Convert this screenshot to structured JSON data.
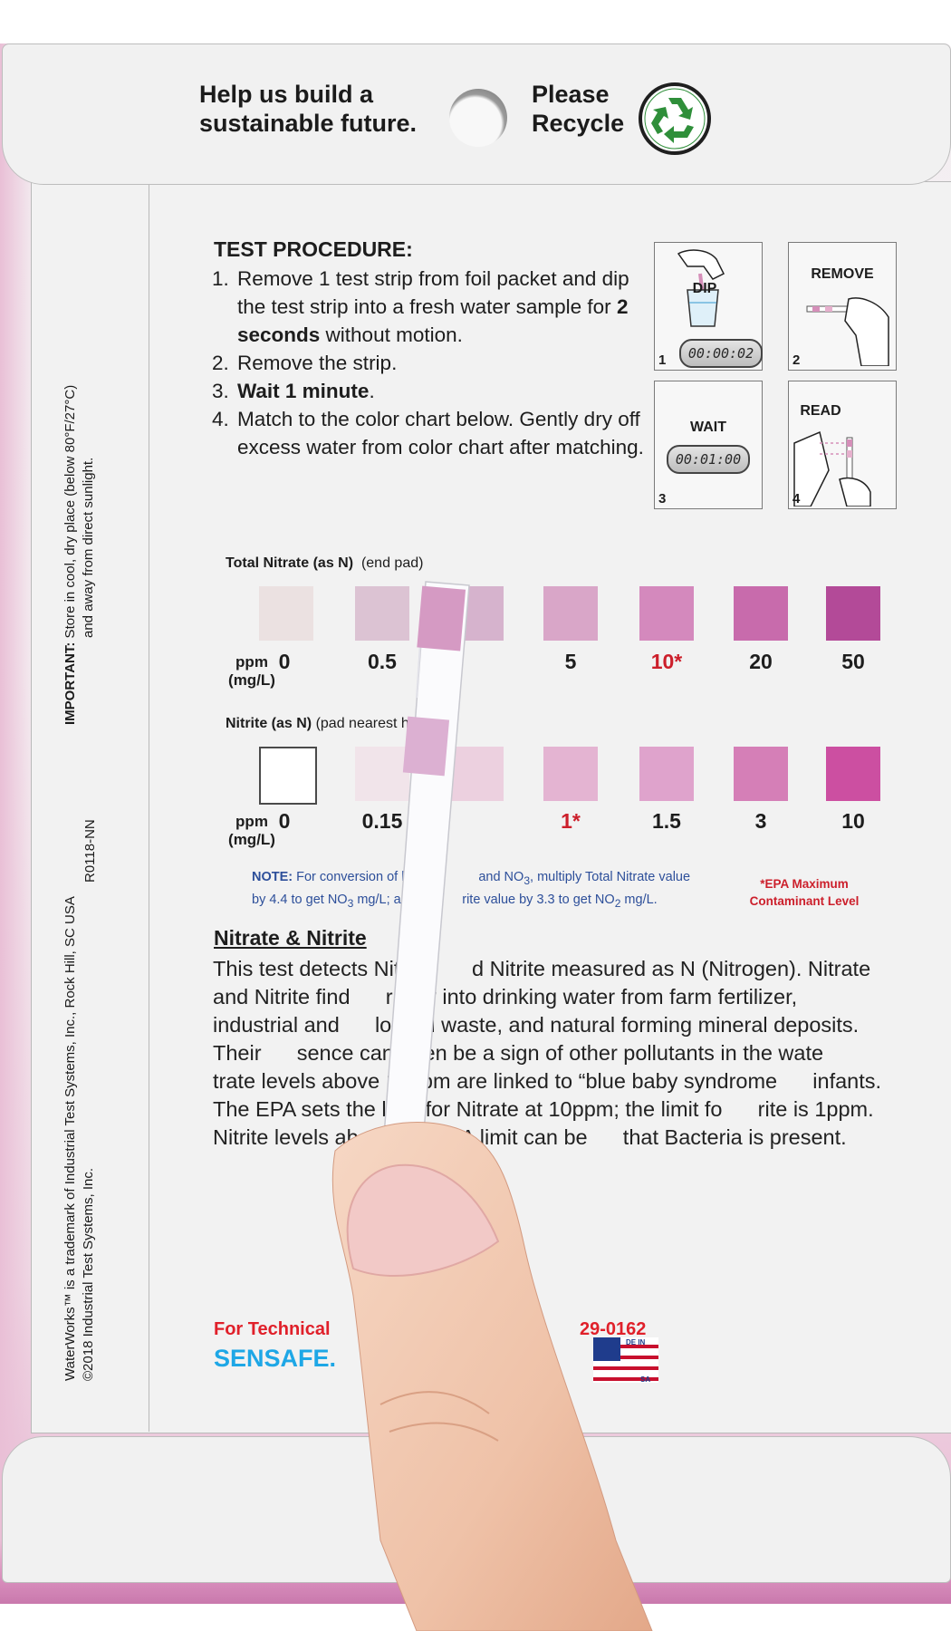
{
  "top_flap": {
    "left_text": "Help us build a sustainable future.",
    "right_text": "Please Recycle"
  },
  "side_notes": {
    "important_label": "IMPORTANT:",
    "important_line1": "Store in cool, dry place (below 80°F/27°C)",
    "important_line2": "and away from direct sunlight.",
    "trademark_line1": "WaterWorks™ is a trademark of Industrial Test Systems, Inc., Rock Hill, SC USA",
    "trademark_line2": "©2018 Industrial Test Systems, Inc.",
    "code": "R0118-NN"
  },
  "procedure": {
    "title": "TEST PROCEDURE:",
    "steps": [
      {
        "num": "1.",
        "pre": "Remove 1 test strip from foil packet and dip the test strip into a fresh water sample for ",
        "bold": "2 seconds",
        "post": " without motion."
      },
      {
        "num": "2.",
        "pre": "Remove the strip.",
        "bold": "",
        "post": ""
      },
      {
        "num": "3.",
        "pre": "",
        "bold": "Wait 1 minute",
        "post": "."
      },
      {
        "num": "4.",
        "pre": "Match to the color chart below. Gently dry off excess water from color chart after matching.",
        "bold": "",
        "post": ""
      }
    ],
    "panels": [
      {
        "label": "DIP",
        "num": "1",
        "timer": "00:00:02"
      },
      {
        "label": "REMOVE",
        "num": "2"
      },
      {
        "label": "WAIT",
        "num": "3",
        "timer": "00:01:00"
      },
      {
        "label": "READ",
        "num": "4"
      }
    ]
  },
  "nitrate_chart": {
    "title_bold": "Total Nitrate (as N)",
    "title_rest": "(end pad)",
    "unit_line1": "ppm",
    "unit_line2": "(mg/L)",
    "values": [
      "0",
      "0.5",
      "",
      "5",
      "10*",
      "20",
      "50"
    ],
    "colors": [
      "#ebe1e1",
      "#dcc3d3",
      "#d6b3cd",
      "#d9a6c8",
      "#d489bd",
      "#c86bac",
      "#b34a98"
    ],
    "highlight_index": 4
  },
  "nitrite_chart": {
    "title_bold": "Nitrite (as N)",
    "title_rest": "(pad nearest hand)",
    "unit_line1": "ppm",
    "unit_line2": "(mg/L)",
    "values": [
      "0",
      "0.15",
      "",
      "1*",
      "1.5",
      "3",
      "10"
    ],
    "colors": [
      "#ffffff",
      "#f1e4ea",
      "#ecd0df",
      "#e4b4d2",
      "#dfa3cc",
      "#d57fb7",
      "#cc4fa1"
    ],
    "highlight_index": 3
  },
  "note": {
    "label": "NOTE:",
    "text1": " For conversion of levels t",
    "text2": "and NO",
    "text3": ", multiply Total Nitrate value",
    "line2a": "by 4.4 to get NO",
    "line2b": " mg/L; and mul",
    "line2c": "rite value by 3.3 to get NO",
    "line2d": " mg/L.",
    "sub3": "3",
    "sub2": "2"
  },
  "epa_note": "*EPA Maximum Contaminant Level",
  "section": {
    "title": "Nitrate & Nitrite",
    "body": "This test detects Nitrate      d Nitrite measured as N (Nitrogen). Nitrate and Nitrite find      r way into drinking water from farm fertilizer, industrial and      logical waste, and natural forming mineral deposits. Their      sence can often be a sign of other pollutants in the wate      trate levels above 10ppm are linked to “blue baby syndrome      infants. The EPA sets the limit for Nitrate at 10ppm; the limit fo      rite is 1ppm. Nitrite levels above the EPA limit can be      that Bacteria is present."
  },
  "footer": {
    "tech_support": "For Technical",
    "phone_fragment": "29-0162",
    "website": "SENSAFE.",
    "flag_text_top": "DE IN",
    "flag_text_bottom": "SA"
  },
  "colors": {
    "accent_red": "#cc1f2b",
    "link_blue": "#1ea7e6",
    "note_blue": "#2d4f9a",
    "recycle_green": "#2f8f3a"
  }
}
